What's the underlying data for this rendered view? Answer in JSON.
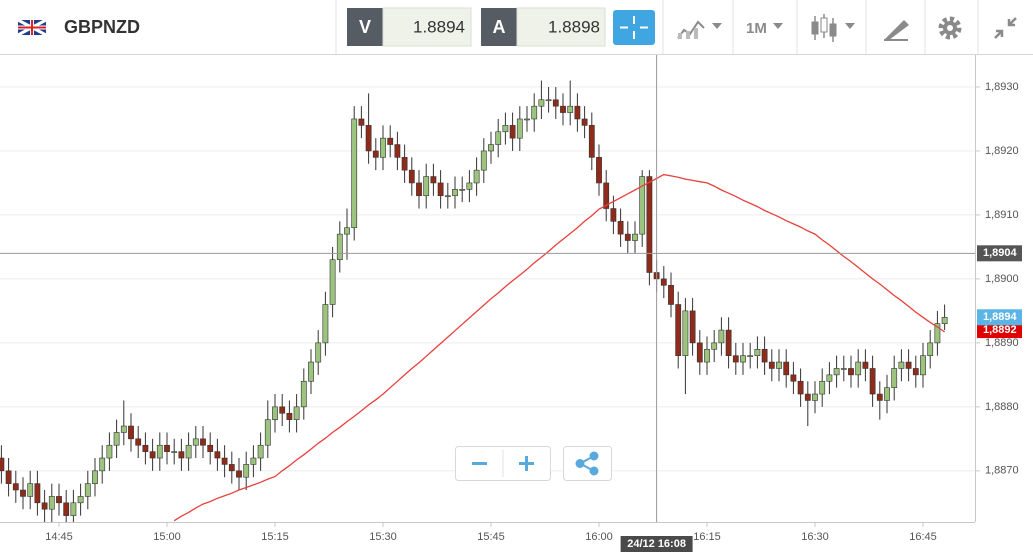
{
  "toolbar": {
    "symbol": "GBPNZD",
    "sell_label": "V",
    "sell_price": "1.8894",
    "buy_label": "A",
    "buy_price": "1.8898",
    "timeframe": "1M"
  },
  "chart_data": {
    "type": "candlestick",
    "categories": [
      "14:37",
      "14:38",
      "14:39",
      "14:40",
      "14:41",
      "14:42",
      "14:43",
      "14:44",
      "14:45",
      "14:46",
      "14:47",
      "14:48",
      "14:49",
      "14:50",
      "14:51",
      "14:52",
      "14:53",
      "14:54",
      "14:55",
      "14:56",
      "14:57",
      "14:58",
      "14:59",
      "15:00",
      "15:01",
      "15:02",
      "15:03",
      "15:04",
      "15:05",
      "15:06",
      "15:07",
      "15:08",
      "15:09",
      "15:10",
      "15:11",
      "15:12",
      "15:13",
      "15:14",
      "15:15",
      "15:16",
      "15:17",
      "15:18",
      "15:19",
      "15:20",
      "15:21",
      "15:22",
      "15:23",
      "15:24",
      "15:25",
      "15:26",
      "15:27",
      "15:28",
      "15:29",
      "15:30",
      "15:31",
      "15:32",
      "15:33",
      "15:34",
      "15:35",
      "15:36",
      "15:37",
      "15:38",
      "15:39",
      "15:40",
      "15:41",
      "15:42",
      "15:43",
      "15:44",
      "15:45",
      "15:46",
      "15:47",
      "15:48",
      "15:49",
      "15:50",
      "15:51",
      "15:52",
      "15:53",
      "15:54",
      "15:55",
      "15:56",
      "15:57",
      "15:58",
      "15:59",
      "16:00",
      "16:01",
      "16:02",
      "16:03",
      "16:04",
      "16:05",
      "16:06",
      "16:07",
      "16:08",
      "16:09",
      "16:10",
      "16:11",
      "16:12",
      "16:13",
      "16:14",
      "16:15",
      "16:16",
      "16:17",
      "16:18",
      "16:19",
      "16:20",
      "16:21",
      "16:22",
      "16:23",
      "16:24",
      "16:25",
      "16:26",
      "16:27",
      "16:28",
      "16:29",
      "16:30",
      "16:31",
      "16:32",
      "16:33",
      "16:34",
      "16:35",
      "16:36",
      "16:37",
      "16:38",
      "16:39",
      "16:40",
      "16:41",
      "16:42",
      "16:43",
      "16:44",
      "16:45",
      "16:46",
      "16:47",
      "16:48"
    ],
    "open": [
      1.8872,
      1.887,
      1.8868,
      1.8867,
      1.8866,
      1.8868,
      1.8865,
      1.8864,
      1.8866,
      1.8865,
      1.8863,
      1.8865,
      1.8866,
      1.8868,
      1.887,
      1.8872,
      1.8874,
      1.8876,
      1.8877,
      1.8875,
      1.8874,
      1.8873,
      1.8872,
      1.8874,
      1.8873,
      1.8873,
      1.8872,
      1.8874,
      1.8875,
      1.8874,
      1.8873,
      1.8872,
      1.8871,
      1.887,
      1.8869,
      1.8871,
      1.8872,
      1.8874,
      1.8878,
      1.888,
      1.8879,
      1.8878,
      1.888,
      1.8884,
      1.8887,
      1.889,
      1.8896,
      1.8903,
      1.8907,
      1.8908,
      1.8925,
      1.8924,
      1.892,
      1.8919,
      1.8922,
      1.8921,
      1.8919,
      1.8917,
      1.8915,
      1.8913,
      1.8916,
      1.8915,
      1.8913,
      1.8913,
      1.8914,
      1.8914,
      1.8915,
      1.8917,
      1.892,
      1.8921,
      1.8923,
      1.8924,
      1.8922,
      1.8925,
      1.8925,
      1.8927,
      1.8928,
      1.8928,
      1.8927,
      1.8926,
      1.8927,
      1.8925,
      1.8924,
      1.8919,
      1.8915,
      1.8911,
      1.8909,
      1.8907,
      1.8906,
      1.8907,
      1.8916,
      1.8901,
      1.89,
      1.8899,
      1.8896,
      1.8888,
      1.8895,
      1.889,
      1.8887,
      1.8889,
      1.889,
      1.8892,
      1.8888,
      1.8887,
      1.8888,
      1.8888,
      1.8889,
      1.8887,
      1.8886,
      1.8887,
      1.8885,
      1.8884,
      1.8882,
      1.8881,
      1.8882,
      1.8884,
      1.8885,
      1.8886,
      1.8886,
      1.8885,
      1.8887,
      1.8886,
      1.8882,
      1.8881,
      1.8883,
      1.8886,
      1.8887,
      1.8886,
      1.8885,
      1.8888,
      1.889,
      1.8893
    ],
    "high": [
      1.8874,
      1.8872,
      1.887,
      1.8869,
      1.887,
      1.887,
      1.8867,
      1.8868,
      1.8868,
      1.8867,
      1.8867,
      1.8868,
      1.887,
      1.8872,
      1.8874,
      1.8876,
      1.8878,
      1.8881,
      1.8879,
      1.8877,
      1.8876,
      1.8875,
      1.8876,
      1.8876,
      1.8875,
      1.8875,
      1.8876,
      1.8877,
      1.8877,
      1.8876,
      1.8875,
      1.8874,
      1.8873,
      1.8872,
      1.8873,
      1.8874,
      1.8876,
      1.8881,
      1.8882,
      1.8882,
      1.8881,
      1.8882,
      1.8886,
      1.8889,
      1.8892,
      1.8898,
      1.8905,
      1.8909,
      1.8911,
      1.8927,
      1.8927,
      1.8929,
      1.8922,
      1.8924,
      1.8924,
      1.8923,
      1.8921,
      1.8919,
      1.8917,
      1.8918,
      1.8918,
      1.8917,
      1.8915,
      1.8916,
      1.8916,
      1.8917,
      1.8919,
      1.8922,
      1.8923,
      1.8925,
      1.8926,
      1.8926,
      1.8927,
      1.8927,
      1.8929,
      1.8931,
      1.893,
      1.893,
      1.8929,
      1.8931,
      1.8929,
      1.8927,
      1.8926,
      1.8921,
      1.8917,
      1.8913,
      1.8911,
      1.8909,
      1.8909,
      1.8917,
      1.8917,
      1.8903,
      1.8902,
      1.8901,
      1.8898,
      1.8897,
      1.8897,
      1.8892,
      1.8891,
      1.8892,
      1.8894,
      1.8894,
      1.889,
      1.889,
      1.889,
      1.8891,
      1.8891,
      1.8889,
      1.8889,
      1.8889,
      1.8887,
      1.8886,
      1.8884,
      1.8884,
      1.8886,
      1.8887,
      1.8888,
      1.8888,
      1.8888,
      1.8889,
      1.8889,
      1.8888,
      1.8884,
      1.8885,
      1.8888,
      1.8889,
      1.8889,
      1.8888,
      1.889,
      1.8892,
      1.8895,
      1.8896
    ],
    "low": [
      1.8868,
      1.8866,
      1.8865,
      1.8864,
      1.8864,
      1.8863,
      1.8862,
      1.8862,
      1.8863,
      1.8861,
      1.8861,
      1.8863,
      1.8864,
      1.8866,
      1.8868,
      1.887,
      1.8872,
      1.8874,
      1.8873,
      1.8872,
      1.8871,
      1.887,
      1.887,
      1.8871,
      1.8871,
      1.887,
      1.887,
      1.8872,
      1.8872,
      1.8871,
      1.887,
      1.8869,
      1.8868,
      1.8867,
      1.8867,
      1.8869,
      1.887,
      1.8872,
      1.8876,
      1.8877,
      1.8876,
      1.8876,
      1.8878,
      1.8882,
      1.8885,
      1.8888,
      1.8894,
      1.8901,
      1.8903,
      1.8906,
      1.8922,
      1.8918,
      1.8917,
      1.8917,
      1.8919,
      1.8917,
      1.8915,
      1.8913,
      1.8911,
      1.8911,
      1.8913,
      1.8911,
      1.8911,
      1.8911,
      1.8912,
      1.8912,
      1.8913,
      1.8915,
      1.8918,
      1.8919,
      1.8921,
      1.892,
      1.892,
      1.8923,
      1.8923,
      1.8925,
      1.8926,
      1.8925,
      1.8924,
      1.8924,
      1.8923,
      1.8922,
      1.8917,
      1.8913,
      1.8909,
      1.8907,
      1.8905,
      1.8904,
      1.8904,
      1.8905,
      1.8899,
      1.8898,
      1.8897,
      1.8894,
      1.8886,
      1.8882,
      1.8888,
      1.8885,
      1.8885,
      1.8887,
      1.8888,
      1.8886,
      1.8885,
      1.8885,
      1.8886,
      1.8886,
      1.8885,
      1.8884,
      1.8884,
      1.8883,
      1.8882,
      1.888,
      1.8877,
      1.8879,
      1.888,
      1.8882,
      1.8883,
      1.8884,
      1.8883,
      1.8883,
      1.8884,
      1.888,
      1.8878,
      1.8879,
      1.8881,
      1.8884,
      1.8884,
      1.8883,
      1.8883,
      1.8886,
      1.8888,
      1.8892
    ],
    "close": [
      1.887,
      1.8868,
      1.8867,
      1.8866,
      1.8868,
      1.8865,
      1.8864,
      1.8866,
      1.8865,
      1.8863,
      1.8865,
      1.8866,
      1.8868,
      1.887,
      1.8872,
      1.8874,
      1.8876,
      1.8877,
      1.8875,
      1.8874,
      1.8873,
      1.8872,
      1.8874,
      1.8873,
      1.8873,
      1.8872,
      1.8874,
      1.8875,
      1.8874,
      1.8873,
      1.8872,
      1.8871,
      1.887,
      1.8869,
      1.8871,
      1.8872,
      1.8874,
      1.8878,
      1.888,
      1.8879,
      1.8878,
      1.888,
      1.8884,
      1.8887,
      1.889,
      1.8896,
      1.8903,
      1.8907,
      1.8908,
      1.8925,
      1.8924,
      1.892,
      1.8919,
      1.8922,
      1.8921,
      1.8919,
      1.8917,
      1.8915,
      1.8913,
      1.8916,
      1.8915,
      1.8913,
      1.8913,
      1.8914,
      1.8914,
      1.8915,
      1.8917,
      1.892,
      1.8921,
      1.8923,
      1.8924,
      1.8922,
      1.8925,
      1.8925,
      1.8927,
      1.8928,
      1.8928,
      1.8927,
      1.8926,
      1.8927,
      1.8925,
      1.8924,
      1.8919,
      1.8915,
      1.8911,
      1.8909,
      1.8907,
      1.8906,
      1.8907,
      1.8916,
      1.8901,
      1.89,
      1.8899,
      1.8896,
      1.8888,
      1.8895,
      1.889,
      1.8887,
      1.8889,
      1.889,
      1.8892,
      1.8888,
      1.8887,
      1.8888,
      1.8888,
      1.8889,
      1.8887,
      1.8886,
      1.8887,
      1.8885,
      1.8884,
      1.8882,
      1.8881,
      1.8882,
      1.8884,
      1.8885,
      1.8886,
      1.8886,
      1.8885,
      1.8887,
      1.8886,
      1.8882,
      1.8881,
      1.8883,
      1.8886,
      1.8887,
      1.8886,
      1.8885,
      1.8888,
      1.889,
      1.8893,
      1.8894
    ],
    "ma": [
      null,
      null,
      null,
      null,
      null,
      null,
      null,
      null,
      null,
      null,
      null,
      null,
      null,
      null,
      null,
      null,
      null,
      null,
      null,
      null,
      null,
      null,
      null,
      null,
      1.88622,
      1.88629,
      1.88635,
      1.88642,
      1.88648,
      1.88652,
      1.88657,
      1.88661,
      1.88665,
      1.8867,
      1.88674,
      1.88678,
      1.88682,
      1.88687,
      1.88691,
      1.887,
      1.88708,
      1.88717,
      1.88725,
      1.88734,
      1.88743,
      1.88751,
      1.8876,
      1.88768,
      1.88777,
      1.88785,
      1.88794,
      1.88803,
      1.88811,
      1.8882,
      1.8883,
      1.8884,
      1.8885,
      1.8886,
      1.88869,
      1.88879,
      1.88889,
      1.88899,
      1.88909,
      1.88919,
      1.88929,
      1.88939,
      1.88949,
      1.88959,
      1.88969,
      1.88978,
      1.88988,
      1.88997,
      1.89006,
      1.89015,
      1.89025,
      1.89034,
      1.89043,
      1.89053,
      1.89062,
      1.89071,
      1.8908,
      1.8909,
      1.89099,
      1.89109,
      1.89115,
      1.89121,
      1.89127,
      1.89133,
      1.89139,
      1.89145,
      1.89151,
      1.89157,
      1.89163,
      1.89161,
      1.89159,
      1.89156,
      1.89154,
      1.89152,
      1.8915,
      1.89145,
      1.89139,
      1.89134,
      1.89129,
      1.89123,
      1.89118,
      1.89113,
      1.89107,
      1.89102,
      1.89097,
      1.89091,
      1.89086,
      1.89081,
      1.89075,
      1.8907,
      1.89061,
      1.89053,
      1.89044,
      1.89035,
      1.89027,
      1.89018,
      1.89009,
      1.89,
      1.88992,
      1.88983,
      1.88974,
      1.88966,
      1.88957,
      1.88948,
      1.8894,
      1.88932,
      1.88925,
      1.88917
    ],
    "up_color": "#9cc47e",
    "down_color": "#8e2b1b",
    "ma_color": "#e8403c",
    "ylim": [
      1.8862,
      1.8935
    ],
    "yticks": [
      {
        "value": 1.887,
        "label": "1,8870"
      },
      {
        "value": 1.888,
        "label": "1,8880"
      },
      {
        "value": 1.889,
        "label": "1,8890"
      },
      {
        "value": 1.89,
        "label": "1,8900"
      },
      {
        "value": 1.891,
        "label": "1,8910"
      },
      {
        "value": 1.892,
        "label": "1,8920"
      },
      {
        "value": 1.893,
        "label": "1,8930"
      }
    ],
    "xticks": [
      "14:45",
      "15:00",
      "15:15",
      "15:30",
      "15:45",
      "16:00",
      "16:15",
      "16:30",
      "16:45"
    ],
    "grid": true,
    "price_tags": [
      {
        "value": 1.8892,
        "label": "1,8892",
        "color": "#e00000"
      },
      {
        "value": 1.8894,
        "label": "1,8894",
        "color": "#5ab4e5"
      }
    ],
    "crosshair": {
      "price": {
        "value": 1.8904,
        "label": "1,8904"
      },
      "time_label": "24/12 16:08"
    }
  }
}
